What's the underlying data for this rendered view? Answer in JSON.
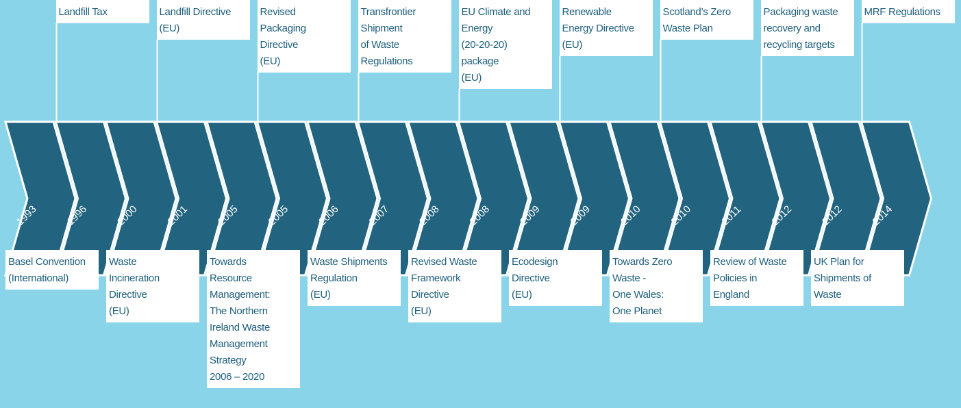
{
  "events": [
    {
      "year": "1993",
      "lines": [
        "Basel Convention",
        "(International)"
      ]
    },
    {
      "year": "1996",
      "lines": [
        "Landfill Tax"
      ]
    },
    {
      "year": "2000",
      "lines": [
        "Waste",
        "Incineration",
        "Directive",
        "(EU)"
      ]
    },
    {
      "year": "2001",
      "lines": [
        "Landfill Directive",
        "(EU)"
      ]
    },
    {
      "year": "2005",
      "lines": [
        "Towards",
        "Resource",
        "Management:",
        "The Northern",
        "Ireland Waste",
        "Management",
        "Strategy",
        "2006 – 2020"
      ]
    },
    {
      "year": "2005",
      "lines": [
        "Revised",
        "Packaging",
        "Directive",
        "(EU)"
      ]
    },
    {
      "year": "2006",
      "lines": [
        "Waste Shipments",
        "Regulation",
        "(EU)"
      ]
    },
    {
      "year": "2007",
      "lines": [
        "Transfrontier",
        "Shipment",
        "of Waste",
        "Regulations"
      ]
    },
    {
      "year": "2008",
      "lines": [
        "Revised Waste",
        "Framework",
        "Directive",
        "(EU)"
      ]
    },
    {
      "year": "2008",
      "lines": [
        "EU Climate and",
        "Energy",
        "(20-20-20)",
        "package",
        "(EU)"
      ]
    },
    {
      "year": "2009",
      "lines": [
        "Ecodesign",
        "Directive",
        "(EU)"
      ]
    },
    {
      "year": "2009",
      "lines": [
        "Renewable",
        "Energy Directive",
        "(EU)"
      ]
    },
    {
      "year": "2010",
      "lines": [
        "Towards Zero",
        "Waste -",
        "One Wales:",
        "One Planet"
      ]
    },
    {
      "year": "2010",
      "lines": [
        "Scotland’s Zero",
        "Waste Plan"
      ]
    },
    {
      "year": "2011",
      "lines": [
        "Review of Waste",
        "Policies in",
        "England"
      ]
    },
    {
      "year": "2012",
      "lines": [
        "Packaging waste",
        "recovery and",
        "recycling targets"
      ]
    },
    {
      "year": "2012",
      "lines": [
        "UK Plan for",
        "Shipments of",
        "Waste"
      ]
    },
    {
      "year": "2014",
      "lines": [
        "MRF Regulations"
      ]
    }
  ]
}
